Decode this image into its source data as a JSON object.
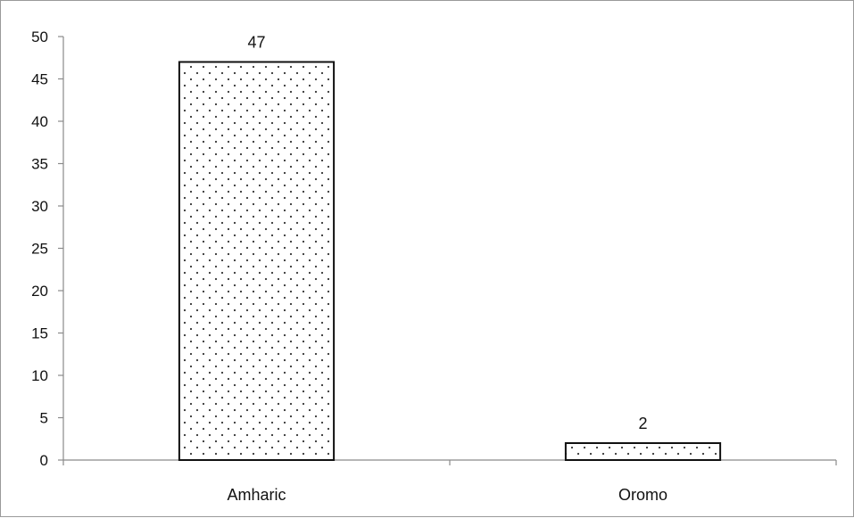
{
  "chart_data": {
    "type": "bar",
    "title": "",
    "xlabel": "",
    "ylabel": "",
    "categories": [
      "Amharic",
      "Oromo"
    ],
    "values": [
      47,
      2
    ],
    "data_labels": [
      "47",
      "2"
    ],
    "ylim": [
      0,
      50
    ],
    "yticks": [
      "0",
      "5",
      "10",
      "15",
      "20",
      "25",
      "30",
      "35",
      "40",
      "45",
      "50"
    ],
    "grid": false,
    "legend": "none",
    "bar_fill": "#ffffff",
    "bar_pattern_color": "#333333",
    "bar_stroke": "#111111",
    "axis_color": "#8a8a8a"
  }
}
